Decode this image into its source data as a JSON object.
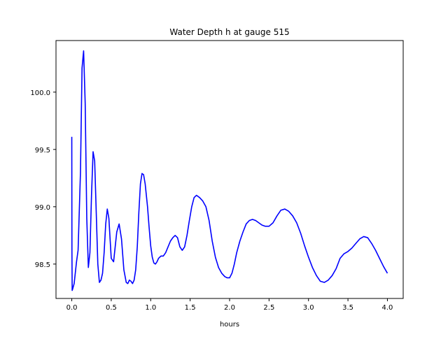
{
  "chart_data": {
    "type": "line",
    "title": "Water Depth h at gauge 515",
    "xlabel": "hours",
    "ylabel": "",
    "xlim": [
      -0.2,
      4.2
    ],
    "ylim": [
      98.2,
      100.45
    ],
    "x_ticks": [
      0.0,
      0.5,
      1.0,
      1.5,
      2.0,
      2.5,
      3.0,
      3.5,
      4.0
    ],
    "x_tick_labels": [
      "0.0",
      "0.5",
      "1.0",
      "1.5",
      "2.0",
      "2.5",
      "3.0",
      "3.5",
      "4.0"
    ],
    "y_ticks": [
      98.5,
      99.0,
      99.5,
      100.0
    ],
    "y_tick_labels": [
      "98.5",
      "99.0",
      "99.5",
      "100.0"
    ],
    "grid": false,
    "legend": false,
    "series": [
      {
        "color": "#0000ff",
        "x": [
          0.0,
          0.002,
          0.005,
          0.01,
          0.03,
          0.06,
          0.08,
          0.11,
          0.13,
          0.15,
          0.17,
          0.19,
          0.21,
          0.23,
          0.25,
          0.27,
          0.29,
          0.31,
          0.33,
          0.35,
          0.37,
          0.39,
          0.41,
          0.43,
          0.45,
          0.47,
          0.5,
          0.53,
          0.57,
          0.6,
          0.63,
          0.66,
          0.69,
          0.71,
          0.73,
          0.75,
          0.77,
          0.79,
          0.81,
          0.83,
          0.85,
          0.87,
          0.89,
          0.91,
          0.93,
          0.96,
          0.98,
          1.0,
          1.02,
          1.04,
          1.06,
          1.08,
          1.1,
          1.13,
          1.16,
          1.19,
          1.22,
          1.25,
          1.28,
          1.31,
          1.34,
          1.37,
          1.4,
          1.43,
          1.46,
          1.49,
          1.52,
          1.55,
          1.58,
          1.62,
          1.66,
          1.7,
          1.74,
          1.78,
          1.82,
          1.86,
          1.9,
          1.94,
          1.97,
          2.0,
          2.03,
          2.06,
          2.09,
          2.13,
          2.17,
          2.21,
          2.25,
          2.29,
          2.33,
          2.37,
          2.41,
          2.45,
          2.5,
          2.55,
          2.6,
          2.65,
          2.7,
          2.75,
          2.8,
          2.85,
          2.9,
          2.95,
          3.0,
          3.05,
          3.1,
          3.15,
          3.2,
          3.25,
          3.3,
          3.35,
          3.4,
          3.45,
          3.5,
          3.55,
          3.6,
          3.65,
          3.7,
          3.75,
          3.8,
          3.85,
          3.9,
          3.95,
          4.0
        ],
        "y": [
          99.61,
          98.6,
          98.27,
          98.28,
          98.33,
          98.52,
          98.62,
          99.3,
          100.21,
          100.36,
          99.9,
          98.9,
          98.47,
          98.6,
          99.1,
          99.48,
          99.4,
          98.95,
          98.5,
          98.34,
          98.36,
          98.42,
          98.6,
          98.85,
          98.98,
          98.9,
          98.55,
          98.52,
          98.78,
          98.85,
          98.72,
          98.45,
          98.34,
          98.33,
          98.36,
          98.35,
          98.33,
          98.36,
          98.45,
          98.65,
          98.95,
          99.2,
          99.29,
          99.28,
          99.2,
          99.0,
          98.82,
          98.66,
          98.56,
          98.51,
          98.5,
          98.52,
          98.55,
          98.57,
          98.57,
          98.6,
          98.65,
          98.7,
          98.73,
          98.75,
          98.73,
          98.65,
          98.62,
          98.65,
          98.75,
          98.88,
          99.0,
          99.08,
          99.1,
          99.08,
          99.05,
          99.0,
          98.88,
          98.7,
          98.56,
          98.47,
          98.42,
          98.39,
          98.38,
          98.38,
          98.42,
          98.5,
          98.6,
          98.7,
          98.78,
          98.85,
          98.88,
          98.89,
          98.88,
          98.86,
          98.84,
          98.83,
          98.83,
          98.86,
          98.92,
          98.97,
          98.98,
          98.96,
          98.92,
          98.86,
          98.77,
          98.66,
          98.56,
          98.47,
          98.4,
          98.35,
          98.34,
          98.36,
          98.4,
          98.46,
          98.55,
          98.59,
          98.61,
          98.64,
          98.68,
          98.72,
          98.74,
          98.73,
          98.68,
          98.62,
          98.55,
          98.48,
          98.42
        ]
      }
    ]
  }
}
